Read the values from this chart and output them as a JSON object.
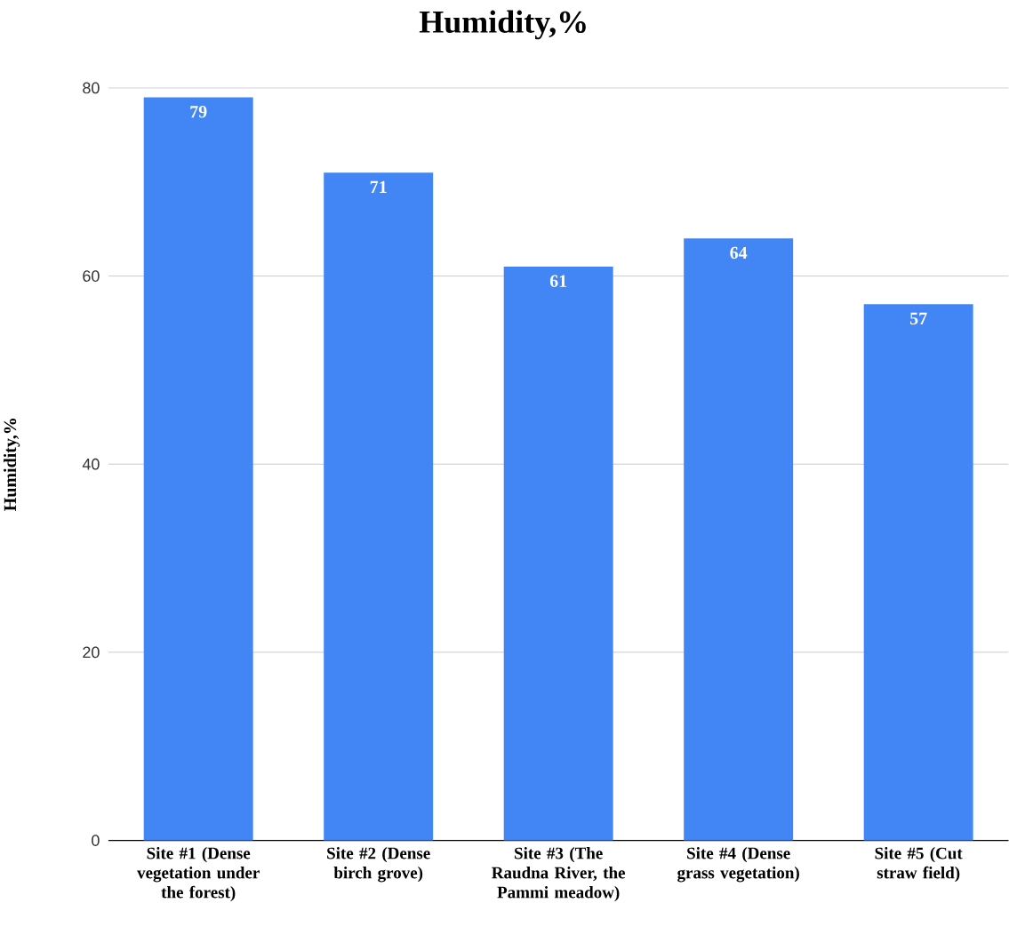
{
  "chart_data": {
    "type": "bar",
    "title": "Humidity,%",
    "ylabel": "Humidity,%",
    "categories": [
      "Site #1 (Dense vegetation under the forest)",
      "Site #2 (Dense birch grove)",
      "Site #3 (The Raudna River, the Pammi meadow)",
      "Site #4 (Dense grass vegetation)",
      "Site #5 (Cut straw field)"
    ],
    "values": [
      79,
      71,
      61,
      64,
      57
    ],
    "color": "#4285f4",
    "data_labels": true,
    "ylim": [
      0,
      80
    ],
    "yticks": [
      0,
      20,
      40,
      60,
      80
    ],
    "grid": "y"
  }
}
